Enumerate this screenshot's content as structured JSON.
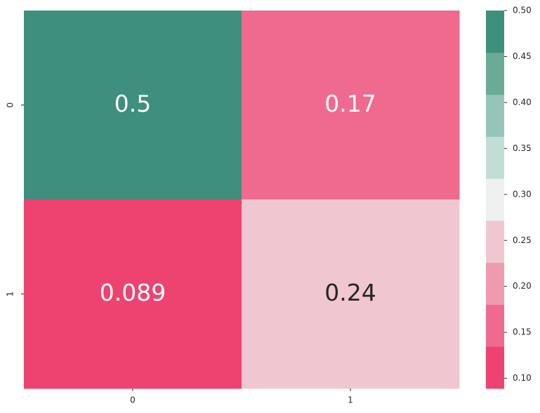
{
  "chart_data": {
    "type": "heatmap",
    "x_categories": [
      "0",
      "1"
    ],
    "y_categories": [
      "0",
      "1"
    ],
    "values": [
      [
        0.5,
        0.17
      ],
      [
        0.089,
        0.24
      ]
    ],
    "zlim": [
      0.089,
      0.5
    ],
    "zticks": [
      {
        "value": 0.1,
        "label": "0.10"
      },
      0.15,
      {
        "value": 0.2,
        "label": "0.20"
      },
      0.25,
      {
        "value": 0.3,
        "label": "0.30"
      },
      0.35,
      {
        "value": 0.4,
        "label": "0.40"
      },
      0.45,
      {
        "value": 0.5,
        "label": "0.50"
      }
    ],
    "colors": [
      "#ee4370",
      "#ef6a8e",
      "#f09ab0",
      "#f0c7d0",
      "#eef1f0",
      "#c2ddd6",
      "#95c5b8",
      "#6aab98",
      "#3e8f7c"
    ]
  }
}
